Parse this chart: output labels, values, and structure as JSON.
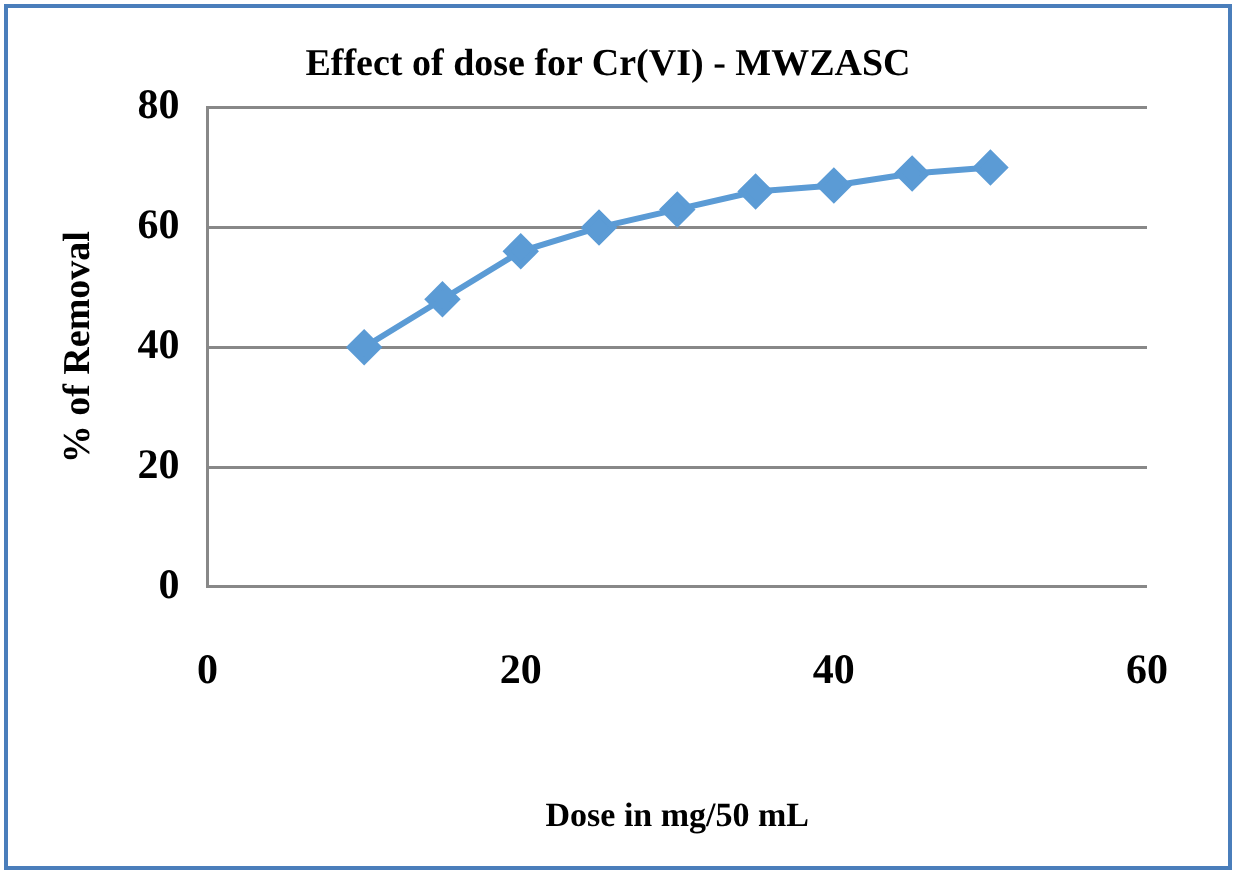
{
  "chart_data": {
    "type": "line",
    "title": "Effect of dose for Cr(VI) - MWZASC",
    "xlabel": "Dose in mg/50 mL",
    "ylabel": "% of Removal",
    "x": [
      10,
      15,
      20,
      25,
      30,
      35,
      40,
      45,
      50
    ],
    "series": [
      {
        "color": "#5b9bd5",
        "values": [
          40,
          48,
          56,
          60,
          63,
          66,
          67,
          69,
          70
        ]
      }
    ],
    "xlim": [
      0,
      60
    ],
    "xticks": [
      0,
      20,
      40,
      60
    ],
    "ylim": [
      0,
      80
    ],
    "yticks": [
      0,
      20,
      40,
      60,
      80
    ],
    "grid": "y",
    "legend": false,
    "marker": "diamond",
    "line_style": "solid"
  }
}
